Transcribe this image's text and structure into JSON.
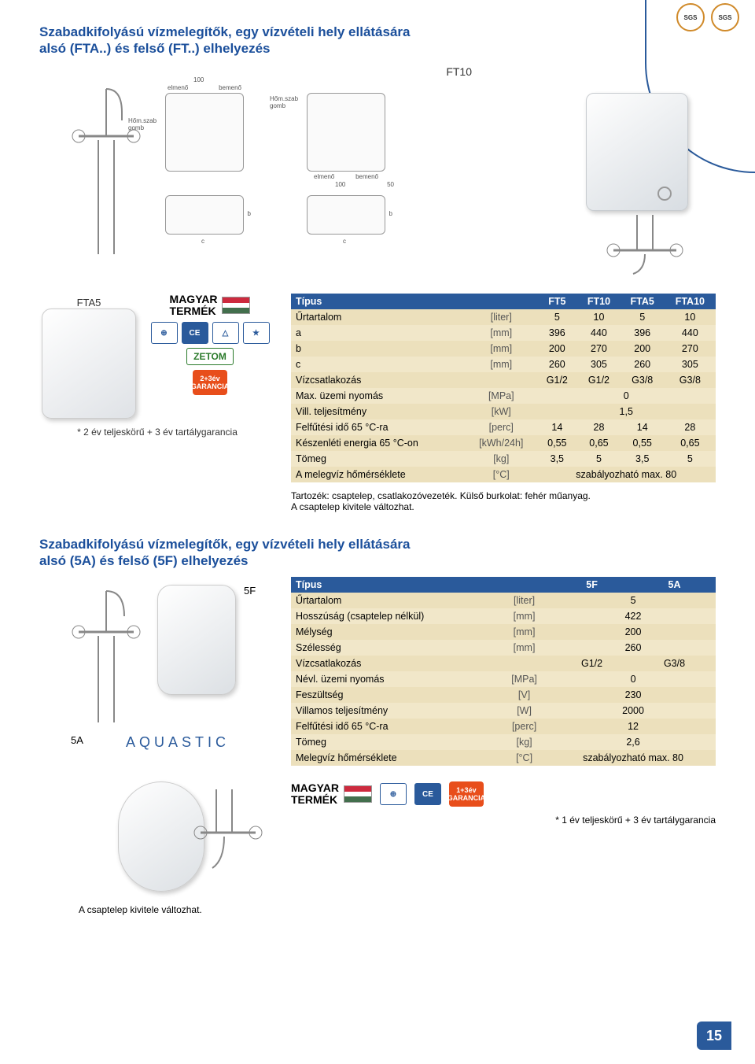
{
  "page_number": "15",
  "colors": {
    "brand_blue": "#2a5a9b",
    "table_header_bg": "#2a5a9b",
    "table_header_text": "#ffffff",
    "table_row_odd": "#f1e7c9",
    "table_row_even": "#ece0bc",
    "garancia_bg": "#e84e1b"
  },
  "badges": {
    "sgs": "SGS"
  },
  "section1": {
    "title": "Szabadkifolyású vízmelegítők, egy vízvételi hely ellátására\nalsó (FTA..) és felső (FT..) elhelyezés",
    "ft10_label": "FT10",
    "fta5_label": "FTA5",
    "schematic_labels": {
      "elmeno": "elmenő",
      "bemeno": "bemenő",
      "homszob_gomb": "Hőm.szab\ngomb",
      "c": "c",
      "b": "b",
      "dim100": "100",
      "dim50": "50"
    },
    "magyar_termek": "MAGYAR\nTERMÉK",
    "zetom": "ZETOM",
    "cert_ce": "CE",
    "garancia": "2+3év\nGARANCIA",
    "footnote": "* 2 év teljeskörű + 3 év tartálygarancia",
    "accessory_note": "Tartozék: csaptelep, csatlakozóvezeték. Külső burkolat: fehér műanyag.\nA csaptelep kivitele változhat.",
    "table": {
      "type": "table",
      "header": [
        "Típus",
        "",
        "FT5",
        "FT10",
        "FTA5",
        "FTA10"
      ],
      "rows": [
        [
          "Űrtartalom",
          "[liter]",
          "5",
          "10",
          "5",
          "10"
        ],
        [
          "a",
          "[mm]",
          "396",
          "440",
          "396",
          "440"
        ],
        [
          "b",
          "[mm]",
          "200",
          "270",
          "200",
          "270"
        ],
        [
          "c",
          "[mm]",
          "260",
          "305",
          "260",
          "305"
        ],
        [
          "Vízcsatlakozás",
          "",
          "G1/2",
          "G1/2",
          "G3/8",
          "G3/8"
        ],
        [
          "Max. üzemi nyomás",
          "[MPa]",
          {
            "span": 4,
            "text": "0"
          }
        ],
        [
          "Vill. teljesítmény",
          "[kW]",
          {
            "span": 4,
            "text": "1,5"
          }
        ],
        [
          "Felfűtési idő 65 °C-ra",
          "[perc]",
          "14",
          "28",
          "14",
          "28"
        ],
        [
          "Készenléti energia 65 °C-on",
          "[kWh/24h]",
          "0,55",
          "0,65",
          "0,55",
          "0,65"
        ],
        [
          "Tömeg",
          "[kg]",
          "3,5",
          "5",
          "3,5",
          "5"
        ],
        [
          "A melegvíz hőmérséklete",
          "[°C]",
          {
            "span": 4,
            "text": "szabályozható max. 80"
          }
        ]
      ]
    }
  },
  "section2": {
    "title": "Szabadkifolyású vízmelegítők, egy vízvételi hely ellátására\nalsó (5A) és felső (5F) elhelyezés",
    "lbl5F": "5F",
    "lbl5A": "5A",
    "aquastic": "AQUASTIC",
    "bottom_note": "A csaptelep kivitele változhat.",
    "magyar_termek": "MAGYAR\nTERMÉK",
    "cert_ce": "CE",
    "garancia": "1+3év\nGARANCIA",
    "footnote": "* 1 év teljeskörű + 3 év tartálygarancia",
    "table": {
      "type": "table",
      "header": [
        "Típus",
        "",
        "5F",
        "5A"
      ],
      "rows": [
        [
          "Űrtartalom",
          "[liter]",
          {
            "span": 2,
            "text": "5"
          }
        ],
        [
          "Hosszúság (csaptelep nélkül)",
          "[mm]",
          {
            "span": 2,
            "text": "422"
          }
        ],
        [
          "Mélység",
          "[mm]",
          {
            "span": 2,
            "text": "200"
          }
        ],
        [
          "Szélesség",
          "[mm]",
          {
            "span": 2,
            "text": "260"
          }
        ],
        [
          "Vízcsatlakozás",
          "",
          "G1/2",
          "G3/8"
        ],
        [
          "Névl. üzemi nyomás",
          "[MPa]",
          {
            "span": 2,
            "text": "0"
          }
        ],
        [
          "Feszültség",
          "[V]",
          {
            "span": 2,
            "text": "230"
          }
        ],
        [
          "Villamos teljesítmény",
          "[W]",
          {
            "span": 2,
            "text": "2000"
          }
        ],
        [
          "Felfűtési idő 65 °C-ra",
          "[perc]",
          {
            "span": 2,
            "text": "12"
          }
        ],
        [
          "Tömeg",
          "[kg]",
          {
            "span": 2,
            "text": "2,6"
          }
        ],
        [
          "Melegvíz hőmérséklete",
          "[°C]",
          {
            "span": 2,
            "text": "szabályozható max. 80"
          }
        ]
      ]
    }
  }
}
